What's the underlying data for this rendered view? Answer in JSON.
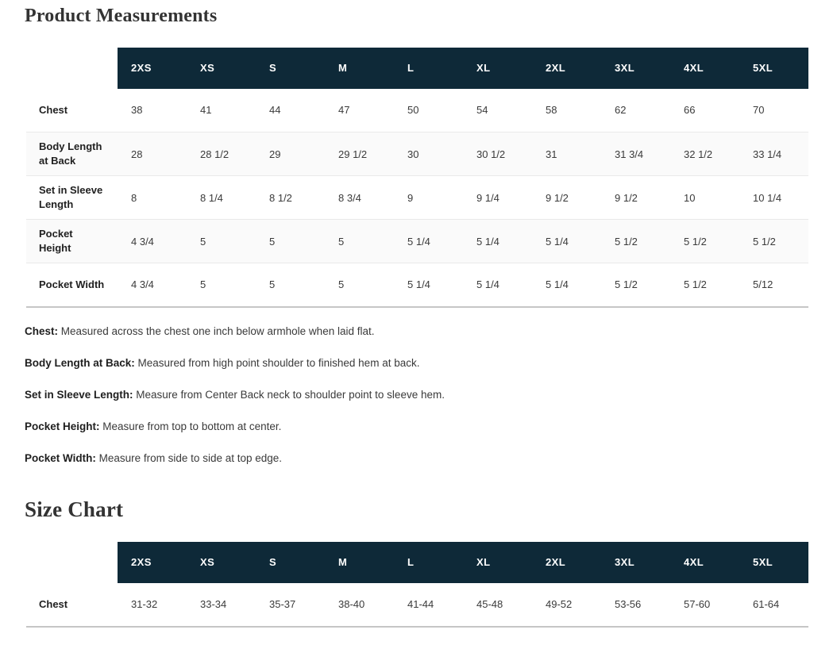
{
  "theme": {
    "header_bg": "#0e2938",
    "header_text": "#ffffff",
    "alt_row_bg": "#fafafa",
    "row_divider": "#e9e9e9",
    "table_bottom_border": "#c6c6c6",
    "title_color": "#333333"
  },
  "product_measurements": {
    "title": "Product Measurements",
    "sizes": [
      "2XS",
      "XS",
      "S",
      "M",
      "L",
      "XL",
      "2XL",
      "3XL",
      "4XL",
      "5XL"
    ],
    "rows": [
      {
        "label": "Chest",
        "values": [
          "38",
          "41",
          "44",
          "47",
          "50",
          "54",
          "58",
          "62",
          "66",
          "70"
        ]
      },
      {
        "label": "Body Length at Back",
        "values": [
          "28",
          "28 1/2",
          "29",
          "29 1/2",
          "30",
          "30 1/2",
          "31",
          "31 3/4",
          "32 1/2",
          "33 1/4"
        ]
      },
      {
        "label": "Set in Sleeve Length",
        "values": [
          "8",
          "8 1/4",
          "8 1/2",
          "8 3/4",
          "9",
          "9 1/4",
          "9 1/2",
          "9 1/2",
          "10",
          "10 1/4"
        ]
      },
      {
        "label": "Pocket Height",
        "values": [
          "4 3/4",
          "5",
          "5",
          "5",
          "5 1/4",
          "5 1/4",
          "5 1/4",
          "5 1/2",
          "5 1/2",
          "5 1/2"
        ]
      },
      {
        "label": "Pocket Width",
        "values": [
          "4 3/4",
          "5",
          "5",
          "5",
          "5 1/4",
          "5 1/4",
          "5 1/4",
          "5 1/2",
          "5 1/2",
          "5/12"
        ]
      }
    ],
    "notes": [
      {
        "label": "Chest:",
        "text": "Measured across the chest one inch below armhole when laid flat."
      },
      {
        "label": "Body Length at Back:",
        "text": "Measured from high point shoulder to finished hem at back."
      },
      {
        "label": "Set in Sleeve Length:",
        "text": "Measure from Center Back neck to shoulder point to sleeve hem."
      },
      {
        "label": "Pocket Height:",
        "text": "Measure from top to bottom at center."
      },
      {
        "label": "Pocket Width:",
        "text": "Measure from side to side at top edge."
      }
    ]
  },
  "size_chart": {
    "title": "Size Chart",
    "sizes": [
      "2XS",
      "XS",
      "S",
      "M",
      "L",
      "XL",
      "2XL",
      "3XL",
      "4XL",
      "5XL"
    ],
    "rows": [
      {
        "label": "Chest",
        "values": [
          "31-32",
          "33-34",
          "35-37",
          "38-40",
          "41-44",
          "45-48",
          "49-52",
          "53-56",
          "57-60",
          "61-64"
        ]
      }
    ]
  }
}
